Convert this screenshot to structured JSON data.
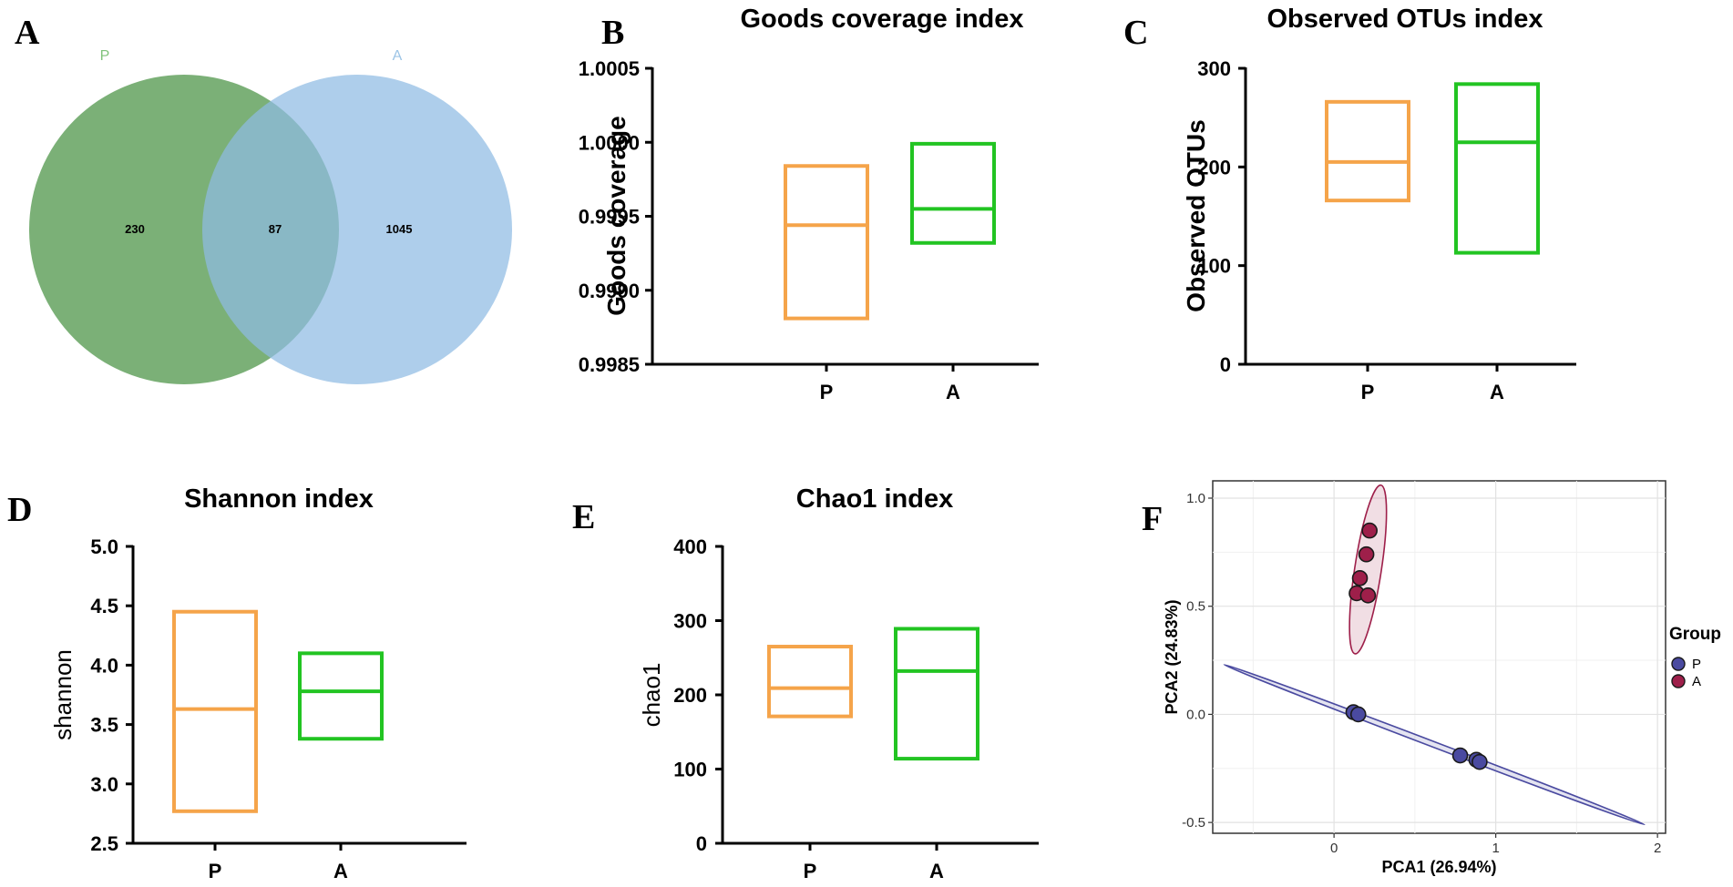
{
  "chart_data": [
    {
      "panel": "A",
      "type": "venn",
      "sets": [
        {
          "name": "P",
          "color": "#5a9c55"
        },
        {
          "name": "A",
          "color": "#8fbbe3"
        }
      ],
      "regions": {
        "P_only": "230",
        "both": "87",
        "A_only": "1045"
      }
    },
    {
      "panel": "B",
      "type": "box",
      "title": "Goods coverage index",
      "ylabel": "Goods coverage",
      "ylim": [
        0.9985,
        1.0005
      ],
      "yticks": [
        "0.9985",
        "0.9990",
        "0.9995",
        "1.0000",
        "1.0005"
      ],
      "ytick_values": [
        0.9985,
        0.999,
        0.9995,
        1.0,
        1.0005
      ],
      "categories": [
        "P",
        "A"
      ],
      "boxes": [
        {
          "name": "P",
          "low": 0.99881,
          "median": 0.99944,
          "high": 0.99984,
          "color": "#f5a44a"
        },
        {
          "name": "A",
          "low": 0.99932,
          "median": 0.99955,
          "high": 0.99999,
          "color": "#22c422"
        }
      ]
    },
    {
      "panel": "C",
      "type": "box",
      "title": "Observed OTUs index",
      "ylabel": "Observed OTUs",
      "ylim": [
        0,
        300
      ],
      "yticks": [
        "0",
        "100",
        "200",
        "300"
      ],
      "ytick_values": [
        0,
        100,
        200,
        300
      ],
      "categories": [
        "P",
        "A"
      ],
      "boxes": [
        {
          "name": "P",
          "low": 166,
          "median": 205,
          "high": 266,
          "color": "#f5a44a"
        },
        {
          "name": "A",
          "low": 113,
          "median": 225,
          "high": 284,
          "color": "#22c422"
        }
      ]
    },
    {
      "panel": "D",
      "type": "box",
      "title": "Shannon index",
      "ylabel": "shannon",
      "ylim": [
        2.5,
        5.0
      ],
      "yticks": [
        "2.5",
        "3.0",
        "3.5",
        "4.0",
        "4.5",
        "5.0"
      ],
      "ytick_values": [
        2.5,
        3.0,
        3.5,
        4.0,
        4.5,
        5.0
      ],
      "categories": [
        "P",
        "A"
      ],
      "boxes": [
        {
          "name": "P",
          "low": 2.77,
          "median": 3.63,
          "high": 4.45,
          "color": "#f5a44a"
        },
        {
          "name": "A",
          "low": 3.38,
          "median": 3.78,
          "high": 4.1,
          "color": "#22c422"
        }
      ]
    },
    {
      "panel": "E",
      "type": "box",
      "title": "Chao1 index",
      "ylabel": "chao1",
      "ylim": [
        0,
        400
      ],
      "yticks": [
        "0",
        "100",
        "200",
        "300",
        "400"
      ],
      "ytick_values": [
        0,
        100,
        200,
        300,
        400
      ],
      "categories": [
        "P",
        "A"
      ],
      "boxes": [
        {
          "name": "P",
          "low": 171,
          "median": 209,
          "high": 265,
          "color": "#f5a44a"
        },
        {
          "name": "A",
          "low": 114,
          "median": 232,
          "high": 289,
          "color": "#22c422"
        }
      ]
    },
    {
      "panel": "F",
      "type": "scatter",
      "xlabel": "PCA1 (26.94%)",
      "ylabel": "PCA2 (24.83%)",
      "xlim": [
        -0.75,
        2.05
      ],
      "ylim": [
        -0.55,
        1.08
      ],
      "xticks": [
        "0",
        "1",
        "2"
      ],
      "xtick_values": [
        0,
        1,
        2
      ],
      "yticks": [
        "-0.5",
        "0.0",
        "0.5",
        "1.0"
      ],
      "ytick_values": [
        -0.5,
        0.0,
        0.5,
        1.0
      ],
      "legend_title": "Group",
      "series": [
        {
          "name": "P",
          "color": "#4a4aa0",
          "points": [
            [
              0.12,
              0.01
            ],
            [
              0.15,
              0.0
            ],
            [
              0.78,
              -0.19
            ],
            [
              0.88,
              -0.21
            ],
            [
              0.9,
              -0.22
            ]
          ],
          "ellipse": {
            "from": [
              -0.68,
              0.23
            ],
            "to": [
              1.92,
              -0.51
            ],
            "width": 0.012
          }
        },
        {
          "name": "A",
          "color": "#9e1f4a",
          "points": [
            [
              0.22,
              0.85
            ],
            [
              0.2,
              0.74
            ],
            [
              0.16,
              0.63
            ],
            [
              0.14,
              0.56
            ],
            [
              0.21,
              0.55
            ]
          ],
          "ellipse": {
            "from": [
              0.13,
              0.28
            ],
            "to": [
              0.29,
              1.06
            ],
            "width": 0.075
          }
        }
      ]
    }
  ],
  "panel_labels": [
    "A",
    "B",
    "C",
    "D",
    "E",
    "F"
  ]
}
